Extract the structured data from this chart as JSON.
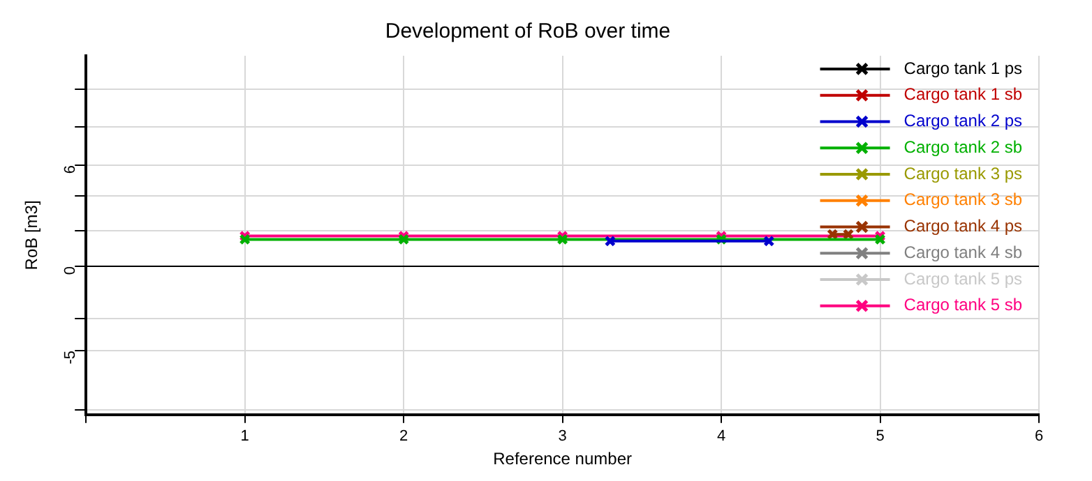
{
  "chart_data": {
    "type": "line",
    "title": "Development of RoB over time",
    "xlabel": "Reference number",
    "ylabel": "RoB [m3]",
    "x": [
      1,
      2,
      3,
      4,
      5
    ],
    "series": [
      {
        "name": "Cargo tank 1 ps",
        "color": "#000000",
        "values": [
          null,
          null,
          null,
          null,
          null
        ]
      },
      {
        "name": "Cargo tank 1 sb",
        "color": "#c00000",
        "values": [
          null,
          null,
          null,
          null,
          null
        ]
      },
      {
        "name": "Cargo tank 2 ps",
        "color": "#0000cc",
        "x": [
          3.3,
          4.3
        ],
        "values": [
          1.5,
          1.5
        ]
      },
      {
        "name": "Cargo tank 2 sb",
        "color": "#00b000",
        "values": [
          1.6,
          1.6,
          1.6,
          1.6,
          1.6
        ]
      },
      {
        "name": "Cargo tank 3 ps",
        "color": "#999900",
        "values": [
          null,
          null,
          null,
          null,
          null
        ]
      },
      {
        "name": "Cargo tank 3 sb",
        "color": "#ff8000",
        "values": [
          null,
          null,
          null,
          null,
          null
        ]
      },
      {
        "name": "Cargo tank 4 ps",
        "color": "#993300",
        "x": [
          4.7,
          4.8
        ],
        "values": [
          1.9,
          1.9
        ]
      },
      {
        "name": "Cargo tank 4 sb",
        "color": "#808080",
        "values": [
          null,
          null,
          null,
          null,
          null
        ]
      },
      {
        "name": "Cargo tank 5 ps",
        "color": "#c8c8c8",
        "values": [
          null,
          null,
          null,
          null,
          null
        ]
      },
      {
        "name": "Cargo tank 5 sb",
        "color": "#ff0080",
        "values": [
          1.8,
          1.8,
          1.8,
          1.8,
          1.8
        ]
      }
    ],
    "xlim": [
      0,
      6
    ],
    "xticks": [
      {
        "value": 0,
        "label": null
      },
      1,
      2,
      3,
      4,
      5,
      6
    ],
    "ylim": [
      -8.8,
      12.5
    ],
    "yticks": [
      {
        "value": -8.5,
        "label": null
      },
      -5,
      {
        "value": -3.1,
        "label": null
      },
      0,
      {
        "value": 2.1,
        "label": null
      },
      {
        "value": 4.2,
        "label": null
      },
      6,
      {
        "value": 8.3,
        "label": null
      },
      {
        "value": 10.5,
        "label": null
      }
    ],
    "ref_lines": [
      {
        "axis": "y",
        "value": 0,
        "color": "#000000"
      }
    ],
    "grid": true,
    "legend": "top right",
    "marker": "cross",
    "line_style": "solid"
  }
}
